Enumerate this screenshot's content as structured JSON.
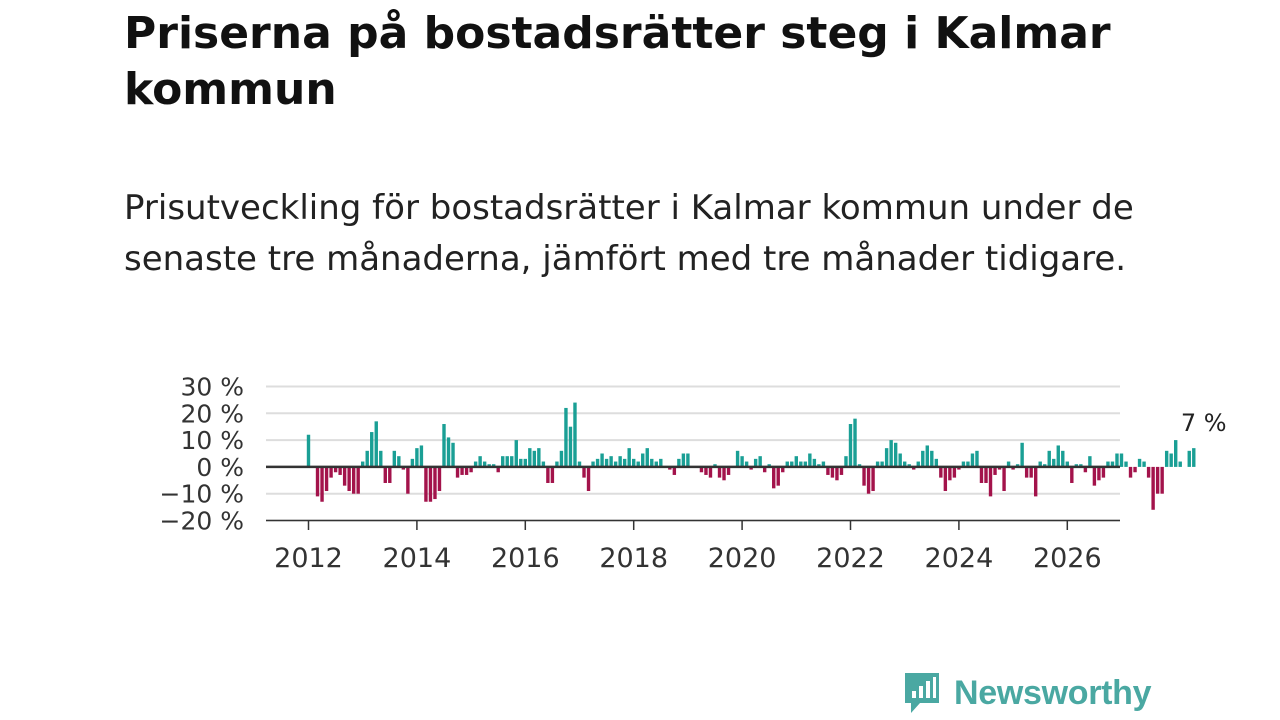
{
  "header": {
    "title": "Priserna på bostadsrätter steg i Kalmar kommun",
    "subtitle": "Prisutveckling för bostadsrätter i Kalmar kommun under de senaste tre månaderna, jämfört med tre månader tidigare."
  },
  "brand": {
    "name": "Newsworthy",
    "icon": "newsworthy-logo-icon",
    "color": "#4aa8a2"
  },
  "chart_data": {
    "type": "bar",
    "title": "Priserna på bostadsrätter steg i Kalmar kommun",
    "xlabel": "",
    "ylabel": "",
    "unit": "%",
    "start_year": 2012,
    "start_month": 1,
    "x_ticks": [
      "2012",
      "2014",
      "2016",
      "2018",
      "2020",
      "2022",
      "2024",
      "2026"
    ],
    "y_ticks": [
      "30 %",
      "20 %",
      "10 %",
      "0 %",
      "−10 %",
      "−20 %"
    ],
    "ylim": [
      -20,
      30
    ],
    "grid": true,
    "positive_color": "#1a9f95",
    "negative_color": "#a3134b",
    "last_value_label": "7 %",
    "values": [
      12,
      0,
      -11,
      -13,
      -9,
      -4,
      -2,
      -3,
      -7,
      -9,
      -10,
      -10,
      2,
      6,
      13,
      17,
      6,
      -6,
      -6,
      6,
      4,
      -1,
      -10,
      3,
      7,
      8,
      -13,
      -13,
      -12,
      -9,
      16,
      11,
      9,
      -4,
      -3,
      -3,
      -2,
      2,
      4,
      2,
      1,
      1,
      -2,
      4,
      4,
      4,
      10,
      3,
      3,
      7,
      6,
      7,
      2,
      -6,
      -6,
      2,
      6,
      22,
      15,
      24,
      2,
      -4,
      -9,
      2,
      3,
      5,
      3,
      4,
      2,
      4,
      3,
      7,
      3,
      2,
      5,
      7,
      3,
      2,
      3,
      0,
      -1,
      -3,
      3,
      5,
      5,
      0,
      0,
      -2,
      -3,
      -4,
      1,
      -4,
      -5,
      -3,
      0,
      6,
      4,
      2,
      -1,
      3,
      4,
      -2,
      1,
      -8,
      -7,
      -2,
      2,
      2,
      4,
      2,
      2,
      5,
      3,
      1,
      2,
      -3,
      -4,
      -5,
      -3,
      4,
      16,
      18,
      1,
      -7,
      -10,
      -9,
      2,
      2,
      7,
      10,
      9,
      5,
      2,
      1,
      -1,
      2,
      6,
      8,
      6,
      3,
      -4,
      -9,
      -5,
      -4,
      -1,
      2,
      2,
      5,
      6,
      -6,
      -6,
      -11,
      -3,
      -1,
      -9,
      2,
      -1,
      1,
      9,
      -4,
      -4,
      -11,
      2,
      1,
      6,
      3,
      8,
      6,
      2,
      -6,
      1,
      1,
      -2,
      4,
      -7,
      -5,
      -4,
      2,
      2,
      5,
      5,
      2,
      -4,
      -2,
      3,
      2,
      -4,
      -16,
      -10,
      -10,
      6,
      5,
      10,
      2,
      0,
      6,
      7
    ]
  }
}
